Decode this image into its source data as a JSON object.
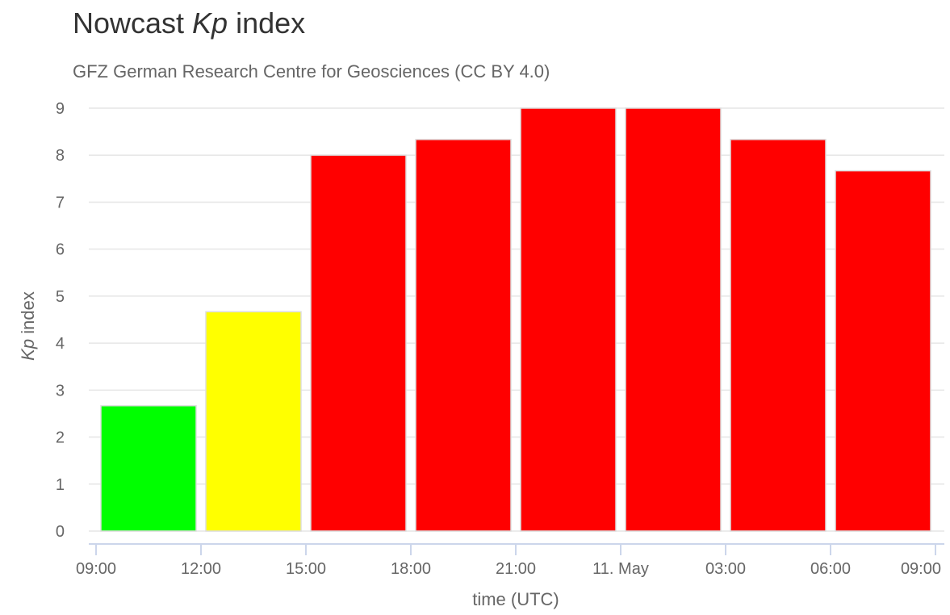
{
  "chart_data": {
    "type": "bar",
    "title_prefix": "Nowcast ",
    "title_italic": "Kp",
    "title_suffix": " index",
    "subtitle": "GFZ German Research Centre for Geosciences (CC BY 4.0)",
    "ylabel_italic": "Kp",
    "ylabel_suffix": " index",
    "xlabel": "time (UTC)",
    "ylim": [
      0,
      9
    ],
    "yticks": [
      "0",
      "1",
      "2",
      "3",
      "4",
      "5",
      "6",
      "7",
      "8",
      "9"
    ],
    "xticks": [
      "09:00",
      "12:00",
      "15:00",
      "18:00",
      "21:00",
      "11. May",
      "03:00",
      "06:00",
      "09:00"
    ],
    "categories": [
      "09:00",
      "12:00",
      "15:00",
      "18:00",
      "21:00",
      "00:00",
      "03:00",
      "06:00"
    ],
    "values": [
      2.667,
      4.667,
      8.0,
      8.333,
      9.0,
      9.0,
      8.333,
      7.667
    ],
    "colors": [
      "#00ff00",
      "#ffff00",
      "#ff0000",
      "#ff0000",
      "#ff0000",
      "#ff0000",
      "#ff0000",
      "#ff0000"
    ],
    "grid": true,
    "legend": "none",
    "axis_color": "#ccd6eb"
  }
}
